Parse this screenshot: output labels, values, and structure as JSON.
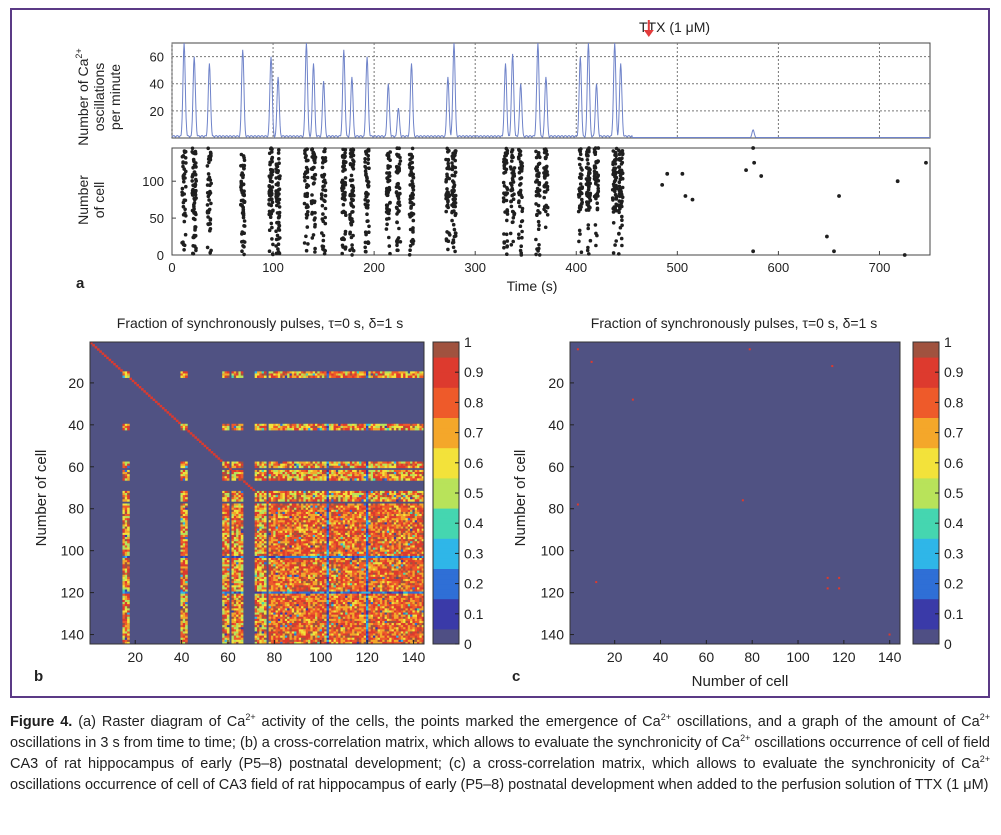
{
  "figure": {
    "panel_a": {
      "panel_letter": "a",
      "ttx_label": "TTX (1 μM)",
      "ttx_time": 450,
      "rate_ylabel_line1": "Number of Ca",
      "rate_ylabel_sup": "2+",
      "rate_ylabel_line2": "oscillations",
      "rate_ylabel_line3": "per minute",
      "raster_ylabel_line1": "Number",
      "raster_ylabel_line2": "of cell",
      "xlabel": "Time (s)",
      "line_color": "#6f83c9",
      "dot_color": "#1f1f1f",
      "arrow_color": "#e23b3b"
    },
    "panel_b": {
      "panel_letter": "b",
      "title": "Fraction of synchronously pulses, τ=0 s, δ=1 s",
      "ylabel": "Number of cell",
      "xlabel": ""
    },
    "panel_c": {
      "panel_letter": "c",
      "title": "Fraction of synchronously pulses, τ=0 s, δ=1 s",
      "ylabel": "Number of cell",
      "xlabel": "Number of cell"
    },
    "colormap": [
      "#4f4f84",
      "#3a3aa8",
      "#2f6fd6",
      "#2fb6e8",
      "#45d6b0",
      "#b8e35a",
      "#f3e23a",
      "#f4a72a",
      "#ee5a2a",
      "#dd3a2e",
      "#a0523f"
    ],
    "background_color": "#505283"
  },
  "chart_data": [
    {
      "type": "line",
      "title": "",
      "xlabel": "Time (s)",
      "ylabel": "Number of Ca2+ oscillations per minute",
      "xlim": [
        0,
        750
      ],
      "ylim": [
        0,
        70
      ],
      "yticks": [
        20,
        40,
        60
      ],
      "grid": true,
      "series": [
        {
          "peaks": [
            {
              "t": 12,
              "v": 70
            },
            {
              "t": 22,
              "v": 60
            },
            {
              "t": 37,
              "v": 55
            },
            {
              "t": 70,
              "v": 65
            },
            {
              "t": 98,
              "v": 60
            },
            {
              "t": 105,
              "v": 45
            },
            {
              "t": 133,
              "v": 70
            },
            {
              "t": 140,
              "v": 55
            },
            {
              "t": 150,
              "v": 42
            },
            {
              "t": 170,
              "v": 65
            },
            {
              "t": 178,
              "v": 45
            },
            {
              "t": 193,
              "v": 60
            },
            {
              "t": 214,
              "v": 40
            },
            {
              "t": 224,
              "v": 22
            },
            {
              "t": 237,
              "v": 55
            },
            {
              "t": 273,
              "v": 45
            },
            {
              "t": 279,
              "v": 70
            },
            {
              "t": 330,
              "v": 55
            },
            {
              "t": 337,
              "v": 62
            },
            {
              "t": 345,
              "v": 40
            },
            {
              "t": 362,
              "v": 70
            },
            {
              "t": 370,
              "v": 45
            },
            {
              "t": 404,
              "v": 60
            },
            {
              "t": 412,
              "v": 70
            },
            {
              "t": 420,
              "v": 40
            },
            {
              "t": 438,
              "v": 70
            },
            {
              "t": 444,
              "v": 55
            },
            {
              "t": 575,
              "v": 6
            }
          ]
        }
      ]
    },
    {
      "type": "scatter",
      "title": "",
      "xlabel": "Time (s)",
      "ylabel": "Number of cell",
      "xlim": [
        0,
        750
      ],
      "ylim": [
        0,
        145
      ],
      "xticks": [
        0,
        100,
        200,
        300,
        400,
        500,
        600,
        700
      ],
      "yticks": [
        0,
        50,
        100
      ],
      "bursts": [
        12,
        22,
        37,
        70,
        98,
        105,
        133,
        140,
        150,
        170,
        178,
        193,
        214,
        224,
        237,
        273,
        279,
        330,
        337,
        345,
        362,
        370,
        404,
        412,
        420,
        438,
        444
      ],
      "isolated_points": [
        {
          "t": 490,
          "cell": 110
        },
        {
          "t": 505,
          "cell": 110
        },
        {
          "t": 515,
          "cell": 75
        },
        {
          "t": 508,
          "cell": 80
        },
        {
          "t": 575,
          "cell": 145
        },
        {
          "t": 576,
          "cell": 125
        },
        {
          "t": 575,
          "cell": 5
        },
        {
          "t": 648,
          "cell": 25
        },
        {
          "t": 660,
          "cell": 80
        },
        {
          "t": 655,
          "cell": 5
        },
        {
          "t": 718,
          "cell": 100
        },
        {
          "t": 725,
          "cell": 0
        },
        {
          "t": 746,
          "cell": 125
        },
        {
          "t": 583,
          "cell": 107
        },
        {
          "t": 568,
          "cell": 115
        },
        {
          "t": 485,
          "cell": 95
        }
      ]
    },
    {
      "type": "heatmap",
      "title": "Fraction of synchronously pulses, τ=0 s, δ=1 s",
      "xlabel": "",
      "ylabel": "Number of cell",
      "xlim": [
        1,
        144
      ],
      "ylim": [
        1,
        144
      ],
      "xticks": [
        20,
        40,
        60,
        80,
        100,
        120,
        140
      ],
      "yticks": [
        20,
        40,
        60,
        80,
        100,
        120,
        140
      ],
      "colorbar_ticks": [
        "0",
        "0.1",
        "0.2",
        "0.3",
        "0.4",
        "0.5",
        "0.6",
        "0.7",
        "0.8",
        "0.9",
        "1"
      ],
      "block_ranges": [
        [
          15,
          17
        ],
        [
          40,
          42
        ],
        [
          58,
          60
        ],
        [
          62,
          66
        ],
        [
          72,
          76
        ],
        [
          78,
          144
        ]
      ]
    },
    {
      "type": "heatmap",
      "title": "Fraction of synchronously pulses, τ=0 s, δ=1 s",
      "xlabel": "Number of cell",
      "ylabel": "Number of cell",
      "xlim": [
        1,
        144
      ],
      "ylim": [
        1,
        144
      ],
      "xticks": [
        20,
        40,
        60,
        80,
        100,
        120,
        140
      ],
      "yticks": [
        20,
        40,
        60,
        80,
        100,
        120,
        140
      ],
      "colorbar_ticks": [
        "0",
        "0.1",
        "0.2",
        "0.3",
        "0.4",
        "0.5",
        "0.6",
        "0.7",
        "0.8",
        "0.9",
        "1"
      ],
      "sparse_points": [
        [
          10,
          10
        ],
        [
          76,
          76
        ],
        [
          113,
          113
        ],
        [
          118,
          118
        ],
        [
          4,
          4
        ],
        [
          115,
          12
        ],
        [
          12,
          115
        ],
        [
          28,
          28
        ],
        [
          79,
          4
        ],
        [
          140,
          140
        ],
        [
          4,
          78
        ],
        [
          113,
          118
        ],
        [
          118,
          113
        ]
      ]
    }
  ],
  "caption": {
    "label": "Figure 4.",
    "text_parts": [
      " (a) Raster diagram of Ca",
      "2+",
      " activity of the cells, the points marked the emergence of Ca",
      "2+",
      " oscillations, and a graph of the amount of Ca",
      "2+",
      " oscillations in 3 s from time to time; (b) a cross-correlation matrix, which allows to evaluate the synchronicity of Ca",
      "2+",
      " oscillations occurrence of cell of field CA3 of rat hippocampus of early (P5–8) postnatal development; (c) a cross-correlation matrix, which allows to evaluate the synchronicity of Ca",
      "2+",
      " oscillations occurrence of cell of CA3 field of rat hippocampus of early (P5–8) postnatal development when added to the perfusion solution of TTX (1 μM)"
    ]
  }
}
